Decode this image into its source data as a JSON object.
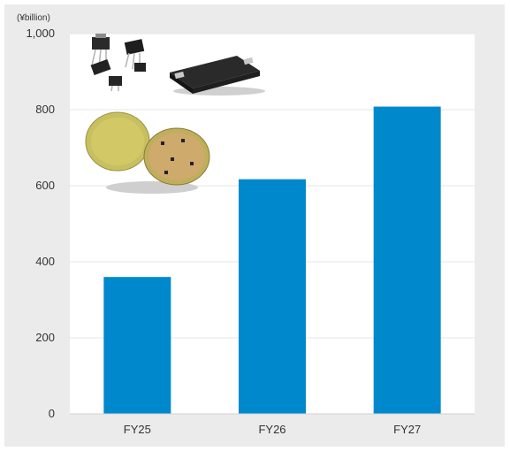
{
  "chart_data": {
    "type": "bar",
    "unit_label": "(¥billion)",
    "categories": [
      "FY25",
      "FY26",
      "FY27"
    ],
    "values": [
      360,
      617,
      808
    ],
    "yticks": [
      "0",
      "200",
      "400",
      "600",
      "800",
      "1,000"
    ],
    "ylim": [
      0,
      1000
    ],
    "grid": true,
    "colors": {
      "bar": "#0088cc",
      "plot_bg": "#ffffff",
      "panel_bg": "#ebebeb",
      "grid": "#e6e6e6"
    },
    "illustrations": [
      "discrete-power-semiconductor-packages",
      "power-module",
      "silicon-wafers"
    ]
  }
}
